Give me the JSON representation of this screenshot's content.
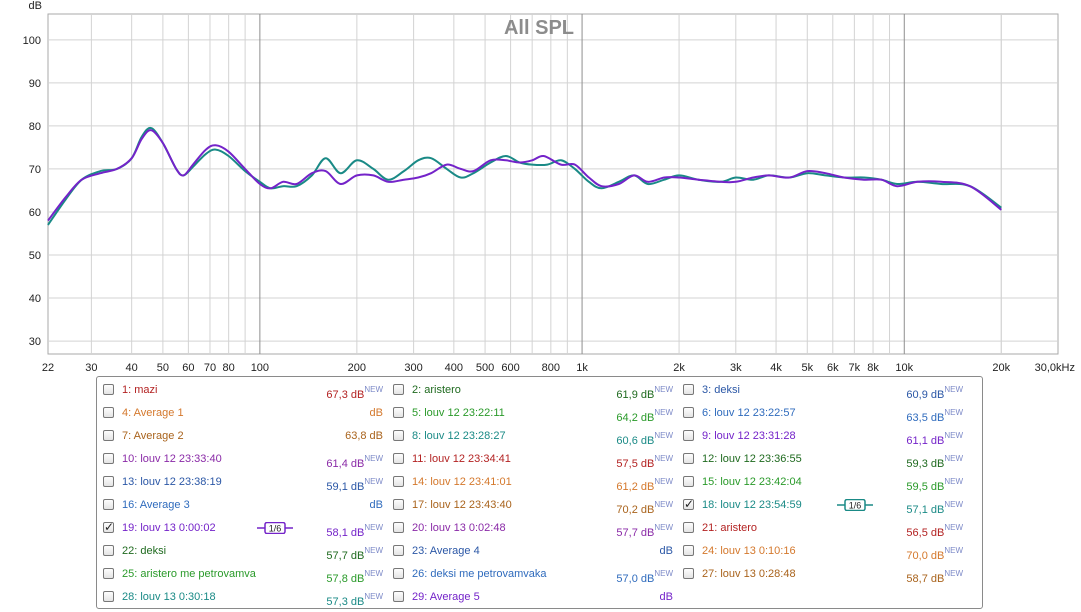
{
  "chart_data": {
    "type": "line",
    "title": "All SPL",
    "ylabel": "dB",
    "xscale": "log",
    "xlim": [
      22,
      30000
    ],
    "ylim": [
      27,
      106
    ],
    "yticks": [
      30,
      40,
      50,
      60,
      70,
      80,
      90,
      100
    ],
    "xtick_labels": [
      {
        "v": 22,
        "t": "22"
      },
      {
        "v": 30,
        "t": "30"
      },
      {
        "v": 40,
        "t": "40"
      },
      {
        "v": 50,
        "t": "50"
      },
      {
        "v": 60,
        "t": "60"
      },
      {
        "v": 70,
        "t": "70"
      },
      {
        "v": 80,
        "t": "80"
      },
      {
        "v": 100,
        "t": "100"
      },
      {
        "v": 200,
        "t": "200"
      },
      {
        "v": 300,
        "t": "300"
      },
      {
        "v": 400,
        "t": "400"
      },
      {
        "v": 500,
        "t": "500"
      },
      {
        "v": 600,
        "t": "600"
      },
      {
        "v": 800,
        "t": "800"
      },
      {
        "v": 1000,
        "t": "1k"
      },
      {
        "v": 2000,
        "t": "2k"
      },
      {
        "v": 3000,
        "t": "3k"
      },
      {
        "v": 4000,
        "t": "4k"
      },
      {
        "v": 5000,
        "t": "5k"
      },
      {
        "v": 6000,
        "t": "6k"
      },
      {
        "v": 7000,
        "t": "7k"
      },
      {
        "v": 8000,
        "t": "8k"
      },
      {
        "v": 10000,
        "t": "10k"
      },
      {
        "v": 20000,
        "t": "20k"
      },
      {
        "v": 30000,
        "t": "30,0kHz"
      }
    ],
    "grid": true,
    "series": [
      {
        "name": "18: louv 12 23:54:59",
        "color": "#1a8a86",
        "points": [
          [
            22,
            57
          ],
          [
            25,
            63
          ],
          [
            28,
            67.5
          ],
          [
            32,
            69.5
          ],
          [
            36,
            70
          ],
          [
            40,
            72.5
          ],
          [
            43,
            77.5
          ],
          [
            46,
            79.5
          ],
          [
            50,
            76
          ],
          [
            55,
            70
          ],
          [
            58,
            68.5
          ],
          [
            62,
            70.5
          ],
          [
            68,
            73.5
          ],
          [
            73,
            74.5
          ],
          [
            80,
            73
          ],
          [
            90,
            69.5
          ],
          [
            100,
            67
          ],
          [
            108,
            65.5
          ],
          [
            118,
            66
          ],
          [
            130,
            66
          ],
          [
            145,
            68.5
          ],
          [
            160,
            72.5
          ],
          [
            178,
            69
          ],
          [
            200,
            72
          ],
          [
            225,
            70
          ],
          [
            250,
            67.5
          ],
          [
            280,
            69.5
          ],
          [
            310,
            72
          ],
          [
            340,
            72.5
          ],
          [
            380,
            70
          ],
          [
            420,
            68
          ],
          [
            460,
            69
          ],
          [
            520,
            71.5
          ],
          [
            580,
            73
          ],
          [
            640,
            71.5
          ],
          [
            700,
            71
          ],
          [
            780,
            71
          ],
          [
            860,
            72
          ],
          [
            950,
            70
          ],
          [
            1050,
            67
          ],
          [
            1150,
            65.5
          ],
          [
            1300,
            67
          ],
          [
            1450,
            68.5
          ],
          [
            1600,
            66.5
          ],
          [
            1800,
            67.5
          ],
          [
            2000,
            68.5
          ],
          [
            2300,
            67.5
          ],
          [
            2700,
            67
          ],
          [
            3000,
            68
          ],
          [
            3400,
            67.5
          ],
          [
            3800,
            68.5
          ],
          [
            4400,
            68
          ],
          [
            5000,
            69
          ],
          [
            5700,
            68.5
          ],
          [
            6500,
            68
          ],
          [
            7500,
            68
          ],
          [
            8500,
            67.5
          ],
          [
            9500,
            66.5
          ],
          [
            11000,
            67
          ],
          [
            13000,
            66.5
          ],
          [
            16000,
            66
          ],
          [
            20000,
            61
          ]
        ]
      },
      {
        "name": "19: louv 13 0:00:02",
        "color": "#7423c9",
        "points": [
          [
            22,
            58
          ],
          [
            25,
            63.5
          ],
          [
            28,
            67.5
          ],
          [
            32,
            69
          ],
          [
            36,
            70
          ],
          [
            40,
            72.5
          ],
          [
            43,
            77
          ],
          [
            46,
            79
          ],
          [
            50,
            76
          ],
          [
            55,
            70
          ],
          [
            58,
            68.5
          ],
          [
            62,
            71
          ],
          [
            68,
            74.5
          ],
          [
            73,
            75.5
          ],
          [
            80,
            74
          ],
          [
            90,
            70
          ],
          [
            100,
            66.5
          ],
          [
            108,
            65.5
          ],
          [
            118,
            67
          ],
          [
            130,
            66.5
          ],
          [
            145,
            69
          ],
          [
            160,
            69.5
          ],
          [
            178,
            66.5
          ],
          [
            200,
            68.5
          ],
          [
            225,
            68.5
          ],
          [
            250,
            67
          ],
          [
            280,
            67.5
          ],
          [
            310,
            68
          ],
          [
            340,
            69
          ],
          [
            380,
            71
          ],
          [
            420,
            70
          ],
          [
            460,
            69.5
          ],
          [
            520,
            72
          ],
          [
            580,
            72
          ],
          [
            640,
            71.5
          ],
          [
            700,
            72
          ],
          [
            760,
            73
          ],
          [
            860,
            71
          ],
          [
            950,
            71
          ],
          [
            1050,
            68
          ],
          [
            1150,
            66
          ],
          [
            1300,
            66.5
          ],
          [
            1450,
            68.5
          ],
          [
            1600,
            67
          ],
          [
            1800,
            68
          ],
          [
            2000,
            68
          ],
          [
            2300,
            67.5
          ],
          [
            2700,
            67
          ],
          [
            3000,
            67
          ],
          [
            3400,
            68
          ],
          [
            3800,
            68.5
          ],
          [
            4400,
            68
          ],
          [
            5000,
            69.5
          ],
          [
            5700,
            69
          ],
          [
            6500,
            68
          ],
          [
            7500,
            67.5
          ],
          [
            8500,
            67.5
          ],
          [
            9500,
            66
          ],
          [
            11000,
            67
          ],
          [
            13000,
            67
          ],
          [
            16000,
            66
          ],
          [
            20000,
            60.5
          ]
        ]
      }
    ]
  },
  "legend": {
    "columns": [
      [
        {
          "label": "1: mazi",
          "value": "67,3 dB",
          "new": "NEW",
          "color": "#b32222",
          "checked": false
        },
        {
          "label": "4: Average 1",
          "value": "dB",
          "new": "",
          "color": "#d4782c",
          "checked": false
        },
        {
          "label": "7: Average 2",
          "value": "63,8 dB",
          "new": "",
          "color": "#a9631c",
          "checked": false
        },
        {
          "label": "10: louv 12 23:33:40",
          "value": "61,4 dB",
          "new": "NEW",
          "color": "#8a2aa7",
          "checked": false
        },
        {
          "label": "13: louv 12 23:38:19",
          "value": "59,1 dB",
          "new": "NEW",
          "color": "#2b57a6",
          "checked": false
        },
        {
          "label": "16: Average 3",
          "value": "dB",
          "new": "",
          "color": "#2f6bbd",
          "checked": false
        },
        {
          "label": "19: louv 13 0:00:02",
          "value": "58,1 dB",
          "new": "NEW",
          "color": "#7423c9",
          "checked": true,
          "smoothing": "1/6"
        },
        {
          "label": "22: deksi",
          "value": "57,7 dB",
          "new": "NEW",
          "color": "#1f6a1f",
          "checked": false
        },
        {
          "label": "25: aristero me petrovamva",
          "value": "57,8 dB",
          "new": "NEW",
          "color": "#2a9a2a",
          "checked": false
        },
        {
          "label": "28: louv 13 0:30:18",
          "value": "57,3 dB",
          "new": "NEW",
          "color": "#1a8a86",
          "checked": false
        }
      ],
      [
        {
          "label": "2: aristero",
          "value": "61,9 dB",
          "new": "NEW",
          "color": "#1f6a1f",
          "checked": false
        },
        {
          "label": "5: louv 12 23:22:11",
          "value": "64,2 dB",
          "new": "NEW",
          "color": "#2a9a2a",
          "checked": false
        },
        {
          "label": "8: louv 12 23:28:27",
          "value": "60,6 dB",
          "new": "NEW",
          "color": "#1a8a86",
          "checked": false
        },
        {
          "label": "11: louv 12 23:34:41",
          "value": "57,5 dB",
          "new": "NEW",
          "color": "#b32222",
          "checked": false
        },
        {
          "label": "14: louv 12 23:41:01",
          "value": "61,2 dB",
          "new": "NEW",
          "color": "#d4782c",
          "checked": false
        },
        {
          "label": "17: louv 12 23:43:40",
          "value": "70,2 dB",
          "new": "NEW",
          "color": "#a9631c",
          "checked": false
        },
        {
          "label": "20: louv 13 0:02:48",
          "value": "57,7 dB",
          "new": "NEW",
          "color": "#8a2aa7",
          "checked": false
        },
        {
          "label": "23: Average 4",
          "value": "dB",
          "new": "",
          "color": "#2b57a6",
          "checked": false
        },
        {
          "label": "26: deksi me petrovamvaka",
          "value": "57,0 dB",
          "new": "NEW",
          "color": "#2f6bbd",
          "checked": false
        },
        {
          "label": "29: Average 5",
          "value": "dB",
          "new": "",
          "color": "#7423c9",
          "checked": false
        }
      ],
      [
        {
          "label": "3: deksi",
          "value": "60,9 dB",
          "new": "NEW",
          "color": "#2b57a6",
          "checked": false
        },
        {
          "label": "6: louv 12 23:22:57",
          "value": "63,5 dB",
          "new": "NEW",
          "color": "#2f6bbd",
          "checked": false
        },
        {
          "label": "9: louv 12 23:31:28",
          "value": "61,1 dB",
          "new": "NEW",
          "color": "#7423c9",
          "checked": false
        },
        {
          "label": "12: louv 12 23:36:55",
          "value": "59,3 dB",
          "new": "NEW",
          "color": "#1f6a1f",
          "checked": false
        },
        {
          "label": "15: louv 12 23:42:04",
          "value": "59,5 dB",
          "new": "NEW",
          "color": "#2a9a2a",
          "checked": false
        },
        {
          "label": "18: louv 12 23:54:59",
          "value": "57,1 dB",
          "new": "NEW",
          "color": "#1a8a86",
          "checked": true,
          "smoothing": "1/6"
        },
        {
          "label": "21: aristero",
          "value": "56,5 dB",
          "new": "NEW",
          "color": "#b32222",
          "checked": false
        },
        {
          "label": "24: louv 13 0:10:16",
          "value": "70,0 dB",
          "new": "NEW",
          "color": "#d4782c",
          "checked": false
        },
        {
          "label": "27: louv 13 0:28:48",
          "value": "58,7 dB",
          "new": "NEW",
          "color": "#a9631c",
          "checked": false
        }
      ]
    ]
  }
}
